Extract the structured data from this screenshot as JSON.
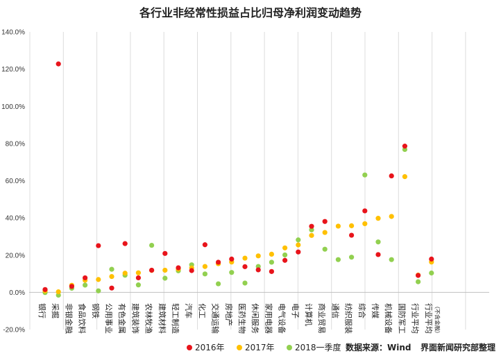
{
  "chart_data": {
    "type": "scatter",
    "title": "各行业非经常性损益占比归母净利润变动趋势",
    "xlabel": "",
    "ylabel": "",
    "ylim": [
      -20,
      140
    ],
    "yticks": [
      "-20.0%",
      "0.0%",
      "20.0%",
      "40.0%",
      "60.0%",
      "80.0%",
      "100.0%",
      "120.0%",
      "140.0%"
    ],
    "ytick_values": [
      -20,
      0,
      20,
      40,
      60,
      80,
      100,
      120,
      140
    ],
    "grid": "vertical",
    "categories": [
      "银行",
      "采掘",
      "非银金融",
      "食品饮料",
      "钢铁",
      "公用事业",
      "有色金属",
      "建筑装饰",
      "农林牧渔",
      "建筑材料",
      "轻工制造",
      "汽车",
      "化工",
      "交通运输",
      "房地产",
      "医药生物",
      "休闲服务",
      "家用电器",
      "电气设备",
      "电子",
      "计算机",
      "商业贸易",
      "通信",
      "纺织服装",
      "综合",
      "传媒",
      "机械设备",
      "国防军工",
      "行业平均",
      "行业平均"
    ],
    "category_note": "（不含金融）",
    "series": [
      {
        "name": "2016年",
        "color": "#e8141b",
        "values": [
          1.5,
          122.8,
          3.2,
          7.8,
          25.1,
          2.3,
          26.2,
          7.8,
          11.9,
          20.9,
          13.2,
          11.7,
          25.6,
          16.2,
          17.9,
          13.8,
          12.1,
          11.2,
          17.2,
          21.7,
          35.5,
          38.1,
          null,
          30.7,
          43.8,
          20.3,
          62.6,
          78.6,
          9.1,
          17.9
        ]
      },
      {
        "name": "2017年",
        "color": "#ffc000",
        "values": [
          0.8,
          0.3,
          3.8,
          6.5,
          6.9,
          8.5,
          10.3,
          10.5,
          11.8,
          11.9,
          12.5,
          13.1,
          13.9,
          15.4,
          16.3,
          18.4,
          19.6,
          20.5,
          23.9,
          25.5,
          30.6,
          32.2,
          35.6,
          35.8,
          36.9,
          39.8,
          40.8,
          62.2,
          9.3,
          16.3
        ]
      },
      {
        "name": "2018一季度",
        "color": "#92d050",
        "values": [
          -0.1,
          -1.5,
          2.2,
          3.9,
          0.8,
          12.4,
          9.2,
          4.0,
          25.3,
          7.6,
          11.6,
          14.8,
          9.9,
          4.6,
          10.7,
          5.0,
          13.9,
          16.2,
          20.1,
          28.2,
          33.6,
          23.2,
          17.6,
          18.9,
          63.1,
          27.1,
          17.6,
          76.8,
          5.7,
          10.4
        ]
      }
    ]
  },
  "footer": {
    "source": "数据来源：Wind",
    "credit": "界面新闻研究部整理"
  }
}
